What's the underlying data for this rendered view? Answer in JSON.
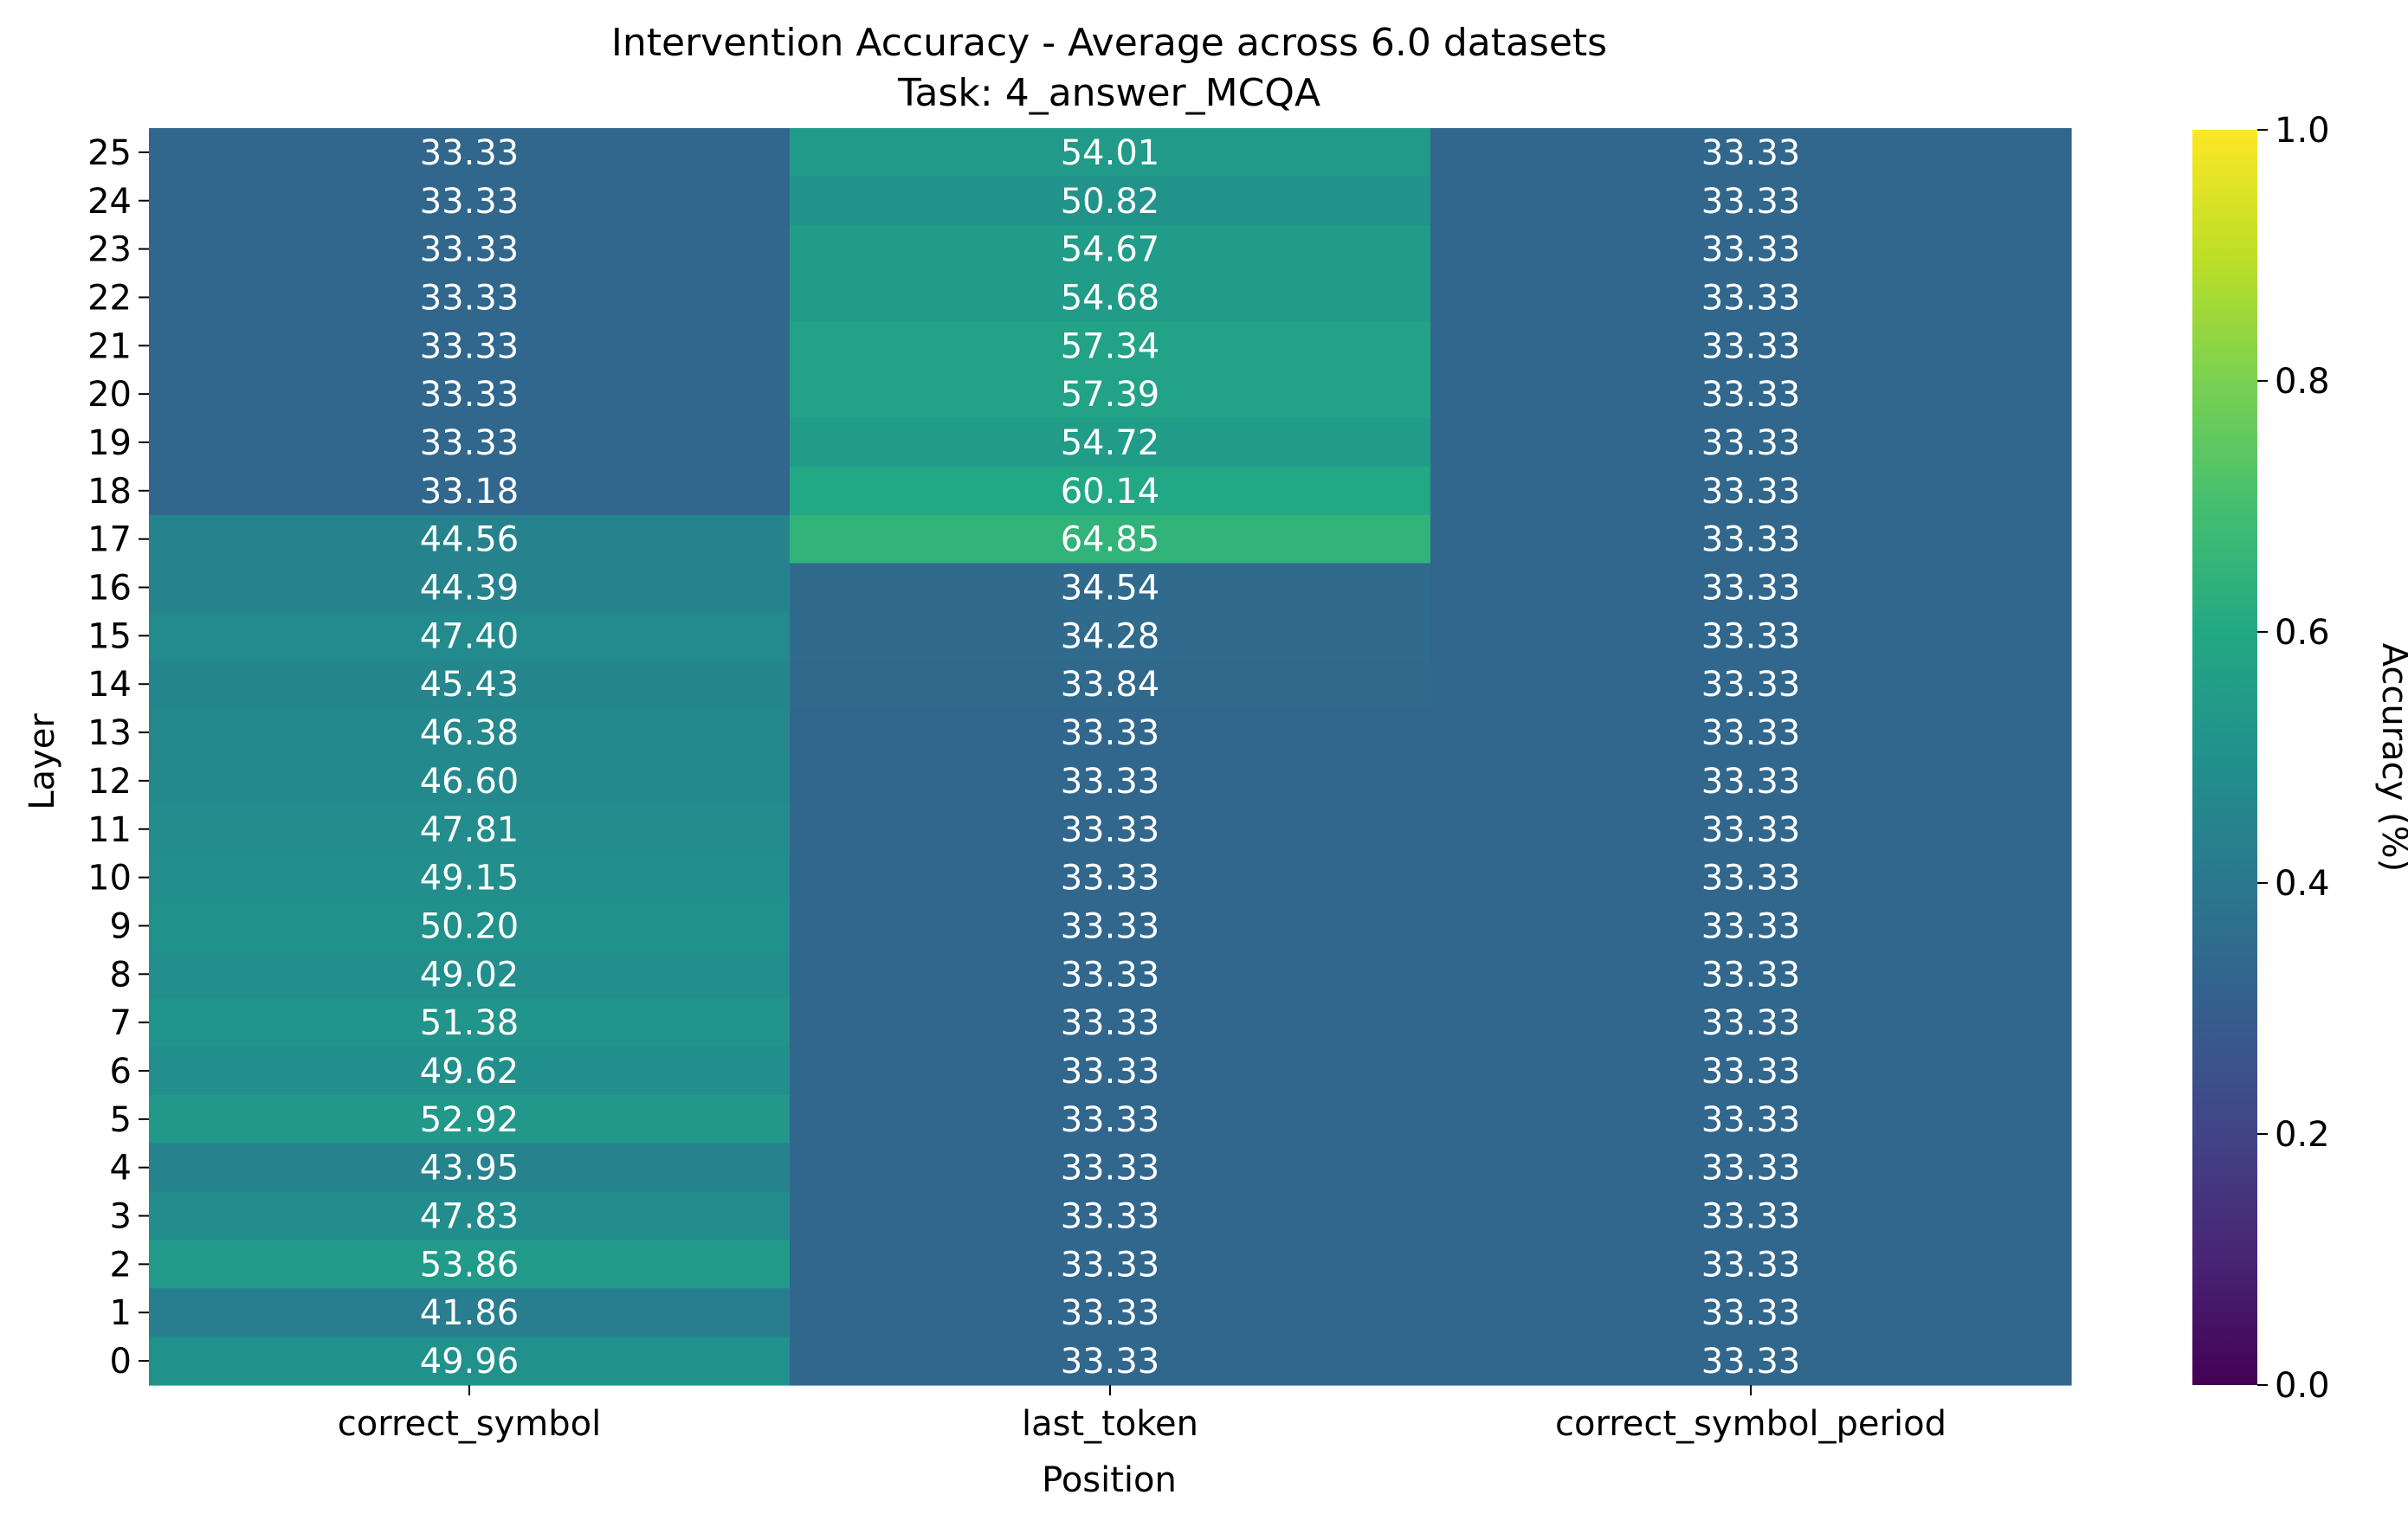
{
  "chart_data": {
    "type": "heatmap",
    "title": "Intervention Accuracy - Average across 6.0 datasets",
    "subtitle": "Task: 4_answer_MCQA",
    "xlabel": "Position",
    "ylabel": "Layer",
    "colorbar_label": "Accuracy (%)",
    "colormap": "viridis",
    "vmin": 0.0,
    "vmax": 1.0,
    "colorbar_ticks": [
      "0.0",
      "0.2",
      "0.4",
      "0.6",
      "0.8",
      "1.0"
    ],
    "columns": [
      "correct_symbol",
      "last_token",
      "correct_symbol_period"
    ],
    "rows": [
      {
        "layer": "25",
        "values": [
          33.33,
          54.01,
          33.33
        ]
      },
      {
        "layer": "24",
        "values": [
          33.33,
          50.82,
          33.33
        ]
      },
      {
        "layer": "23",
        "values": [
          33.33,
          54.67,
          33.33
        ]
      },
      {
        "layer": "22",
        "values": [
          33.33,
          54.68,
          33.33
        ]
      },
      {
        "layer": "21",
        "values": [
          33.33,
          57.34,
          33.33
        ]
      },
      {
        "layer": "20",
        "values": [
          33.33,
          57.39,
          33.33
        ]
      },
      {
        "layer": "19",
        "values": [
          33.33,
          54.72,
          33.33
        ]
      },
      {
        "layer": "18",
        "values": [
          33.18,
          60.14,
          33.33
        ]
      },
      {
        "layer": "17",
        "values": [
          44.56,
          64.85,
          33.33
        ]
      },
      {
        "layer": "16",
        "values": [
          44.39,
          34.54,
          33.33
        ]
      },
      {
        "layer": "15",
        "values": [
          47.4,
          34.28,
          33.33
        ]
      },
      {
        "layer": "14",
        "values": [
          45.43,
          33.84,
          33.33
        ]
      },
      {
        "layer": "13",
        "values": [
          46.38,
          33.33,
          33.33
        ]
      },
      {
        "layer": "12",
        "values": [
          46.6,
          33.33,
          33.33
        ]
      },
      {
        "layer": "11",
        "values": [
          47.81,
          33.33,
          33.33
        ]
      },
      {
        "layer": "10",
        "values": [
          49.15,
          33.33,
          33.33
        ]
      },
      {
        "layer": "9",
        "values": [
          50.2,
          33.33,
          33.33
        ]
      },
      {
        "layer": "8",
        "values": [
          49.02,
          33.33,
          33.33
        ]
      },
      {
        "layer": "7",
        "values": [
          51.38,
          33.33,
          33.33
        ]
      },
      {
        "layer": "6",
        "values": [
          49.62,
          33.33,
          33.33
        ]
      },
      {
        "layer": "5",
        "values": [
          52.92,
          33.33,
          33.33
        ]
      },
      {
        "layer": "4",
        "values": [
          43.95,
          33.33,
          33.33
        ]
      },
      {
        "layer": "3",
        "values": [
          47.83,
          33.33,
          33.33
        ]
      },
      {
        "layer": "2",
        "values": [
          53.86,
          33.33,
          33.33
        ]
      },
      {
        "layer": "1",
        "values": [
          41.86,
          33.33,
          33.33
        ]
      },
      {
        "layer": "0",
        "values": [
          49.96,
          33.33,
          33.33
        ]
      }
    ]
  }
}
